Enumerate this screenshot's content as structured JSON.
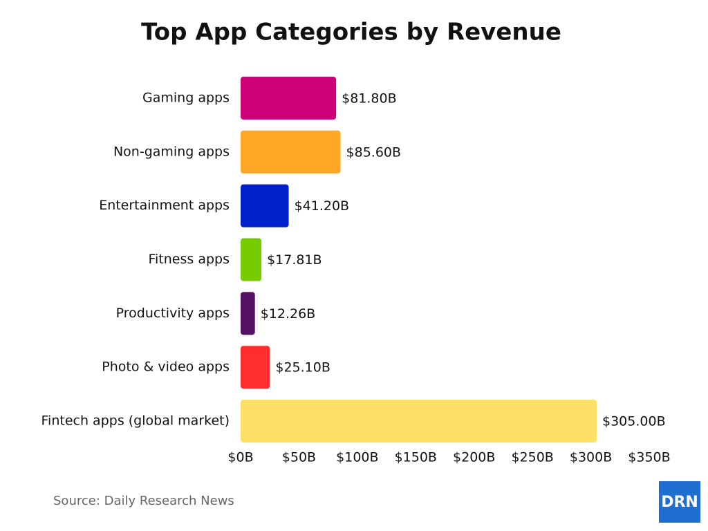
{
  "chart_data": {
    "type": "bar",
    "orientation": "horizontal",
    "title": "Top App Categories by Revenue",
    "categories": [
      "Gaming apps",
      "Non-gaming apps",
      "Entertainment apps",
      "Fitness apps",
      "Productivity apps",
      "Photo & video apps",
      "Fintech apps (global market)"
    ],
    "values": [
      81.8,
      85.6,
      41.2,
      17.81,
      12.26,
      25.1,
      305.0
    ],
    "value_labels": [
      "$81.80B",
      "$85.60B",
      "$41.20B",
      "$17.81B",
      "$12.26B",
      "$25.10B",
      "$305.00B"
    ],
    "colors": [
      "#cc0077",
      "#ffa726",
      "#0022cc",
      "#77cc00",
      "#551166",
      "#ff2d2d",
      "#ffe066"
    ],
    "xlim": [
      0,
      350
    ],
    "xticks": [
      {
        "value": 0,
        "label": "$0B"
      },
      {
        "value": 50,
        "label": "$50B"
      },
      {
        "value": 100,
        "label": "$100B"
      },
      {
        "value": 150,
        "label": "$150B"
      },
      {
        "value": 200,
        "label": "$200B"
      },
      {
        "value": 250,
        "label": "$250B"
      },
      {
        "value": 300,
        "label": "$300B"
      },
      {
        "value": 350,
        "label": "$350B"
      }
    ],
    "grid": false,
    "source": "Source: Daily Research News",
    "logo": "DRN"
  }
}
